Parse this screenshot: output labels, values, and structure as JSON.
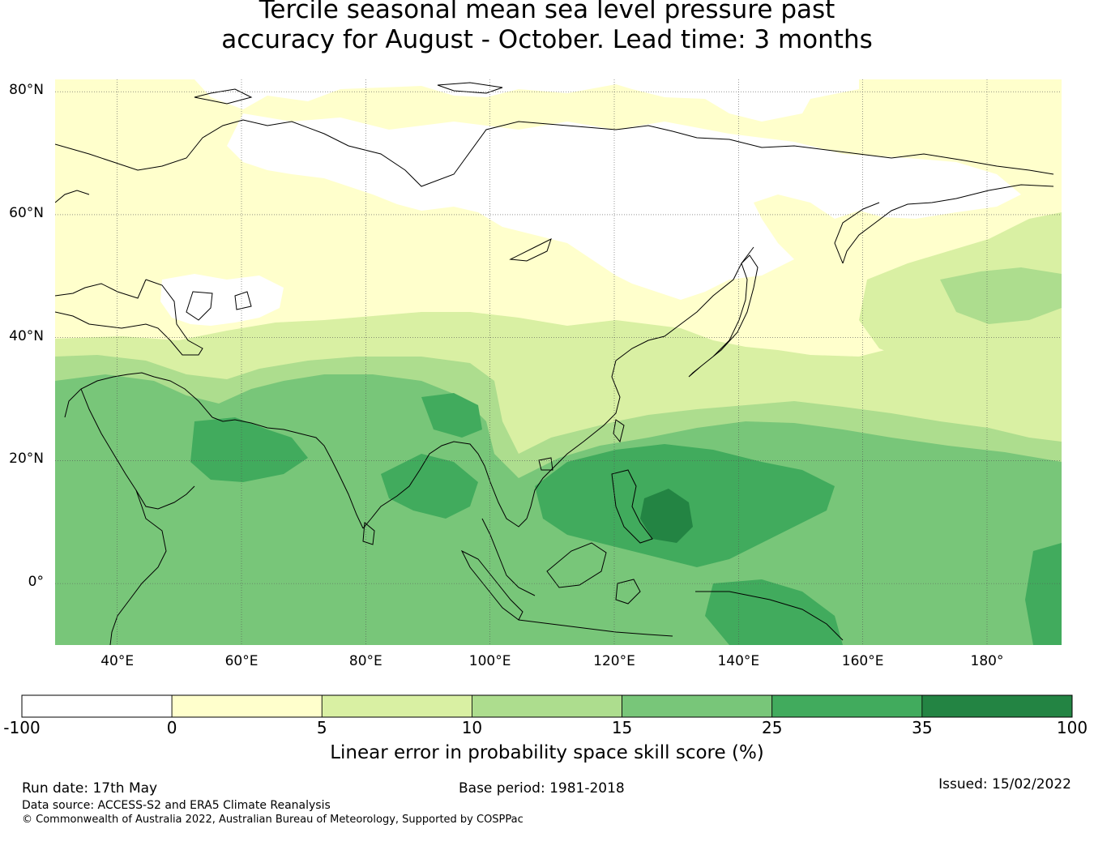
{
  "title": {
    "line1": "Tercile seasonal mean sea level pressure past",
    "line2": "accuracy for August - October. Lead time: 3 months"
  },
  "map": {
    "lon_range": [
      30,
      192
    ],
    "lat_range": [
      -10,
      82
    ],
    "lat_ticks": [
      {
        "value": 80,
        "label": "80°N"
      },
      {
        "value": 60,
        "label": "60°N"
      },
      {
        "value": 40,
        "label": "40°N"
      },
      {
        "value": 20,
        "label": "20°N"
      },
      {
        "value": 0,
        "label": "0°"
      }
    ],
    "lon_ticks": [
      {
        "value": 40,
        "label": "40°E"
      },
      {
        "value": 60,
        "label": "60°E"
      },
      {
        "value": 80,
        "label": "80°E"
      },
      {
        "value": 100,
        "label": "100°E"
      },
      {
        "value": 120,
        "label": "120°E"
      },
      {
        "value": 140,
        "label": "140°E"
      },
      {
        "value": 160,
        "label": "160°E"
      },
      {
        "value": 180,
        "label": "180°"
      }
    ]
  },
  "colorbar": {
    "title": "Linear error in probability space skill score (%)",
    "boundaries": [
      "-100",
      "0",
      "5",
      "10",
      "15",
      "25",
      "35",
      "100"
    ],
    "colors": [
      "#ffffff",
      "#ffffcc",
      "#d9f0a3",
      "#addd8e",
      "#78c679",
      "#41ab5d",
      "#238443"
    ]
  },
  "footer": {
    "run_date": "Run date: 17th May",
    "base_period": "Base period: 1981-2018",
    "issued": "Issued: 15/02/2022",
    "data_source": "Data source: ACCESS-S2 and ERA5 Climate Reanalysis",
    "copyright": "© Commonwealth of Australia 2022, Australian Bureau of Meteorology, Supported by COSPPac"
  }
}
